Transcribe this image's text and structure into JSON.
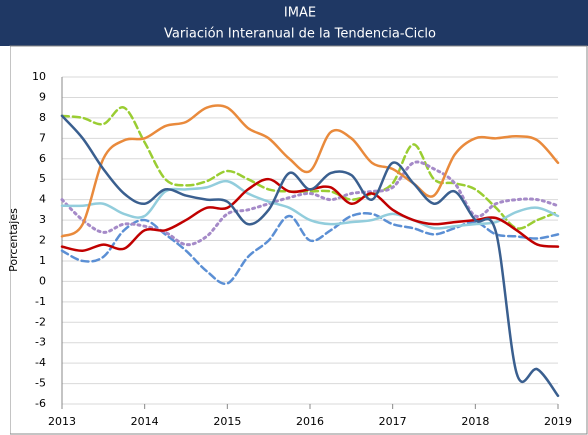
{
  "chart_data": {
    "type": "line",
    "title": "IMAE",
    "subtitle": "Variación Interanual de la Tendencia-Ciclo",
    "y_label": "Porcentajes",
    "x": [
      2013,
      2013.25,
      2013.5,
      2013.75,
      2014,
      2014.25,
      2014.5,
      2014.75,
      2015,
      2015.25,
      2015.5,
      2015.75,
      2016,
      2016.25,
      2016.5,
      2016.75,
      2017,
      2017.25,
      2017.5,
      2017.75,
      2018,
      2018.25,
      2018.5,
      2018.75,
      2019
    ],
    "xlim": [
      2013,
      2019
    ],
    "xticks": [
      2013,
      2014,
      2015,
      2016,
      2017,
      2018,
      2019
    ],
    "ylim": [
      -6,
      10
    ],
    "yticks": [
      -6,
      -5,
      -4,
      -3,
      -2,
      -1,
      0,
      1,
      2,
      3,
      4,
      5,
      6,
      7,
      8,
      9,
      10
    ],
    "grid": true,
    "series": [
      {
        "color": "#9acd32",
        "dash": "dashed",
        "values": [
          8.1,
          8.0,
          7.7,
          8.5,
          6.8,
          5.0,
          4.7,
          4.9,
          5.4,
          5.0,
          4.5,
          4.4,
          4.4,
          4.4,
          4.0,
          4.3,
          4.8,
          6.7,
          5.0,
          4.8,
          4.5,
          3.6,
          2.6,
          3.0,
          3.4
        ]
      },
      {
        "color": "#5b8fd4",
        "dash": "dashed",
        "values": [
          1.5,
          1.0,
          1.2,
          2.5,
          3.0,
          2.3,
          1.5,
          0.5,
          -0.1,
          1.2,
          2.0,
          3.2,
          2.0,
          2.5,
          3.2,
          3.3,
          2.8,
          2.6,
          2.3,
          2.6,
          2.9,
          2.3,
          2.2,
          2.1,
          2.3
        ]
      },
      {
        "color": "#a58ac8",
        "dash": "dotted",
        "values": [
          4.0,
          3.0,
          2.4,
          2.8,
          2.7,
          2.4,
          1.8,
          2.2,
          3.3,
          3.5,
          3.8,
          4.1,
          4.3,
          4.0,
          4.3,
          4.4,
          4.6,
          5.8,
          5.5,
          4.8,
          3.2,
          3.8,
          4.0,
          4.0,
          3.7
        ]
      },
      {
        "color": "#92cddc",
        "dash": "solid",
        "values": [
          3.7,
          3.7,
          3.8,
          3.3,
          3.2,
          4.4,
          4.5,
          4.6,
          4.9,
          4.3,
          3.9,
          3.6,
          3.0,
          2.8,
          2.9,
          3.0,
          3.3,
          3.0,
          2.6,
          2.7,
          2.8,
          2.9,
          3.4,
          3.6,
          3.2
        ]
      },
      {
        "color": "#c00000",
        "dash": "solid",
        "values": [
          1.7,
          1.5,
          1.8,
          1.6,
          2.5,
          2.5,
          3.0,
          3.6,
          3.6,
          4.5,
          5.0,
          4.4,
          4.5,
          4.6,
          3.8,
          4.3,
          3.5,
          3.0,
          2.8,
          2.9,
          3.0,
          3.1,
          2.5,
          1.8,
          1.7
        ]
      },
      {
        "color": "#e98a3c",
        "dash": "solid",
        "values": [
          2.2,
          2.8,
          6.0,
          6.9,
          7.0,
          7.6,
          7.8,
          8.5,
          8.5,
          7.5,
          7.0,
          6.0,
          5.4,
          7.3,
          7.0,
          5.8,
          5.5,
          4.8,
          4.2,
          6.2,
          7.0,
          7.0,
          7.1,
          6.9,
          5.8
        ]
      },
      {
        "color": "#3a5f8f",
        "dash": "solid",
        "values": [
          8.1,
          7.0,
          5.5,
          4.3,
          3.8,
          4.5,
          4.2,
          4.0,
          3.9,
          2.8,
          3.5,
          5.3,
          4.5,
          5.3,
          5.2,
          4.0,
          5.8,
          4.8,
          3.8,
          4.4,
          3.0,
          2.4,
          -4.5,
          -4.3,
          -5.6
        ]
      }
    ]
  }
}
